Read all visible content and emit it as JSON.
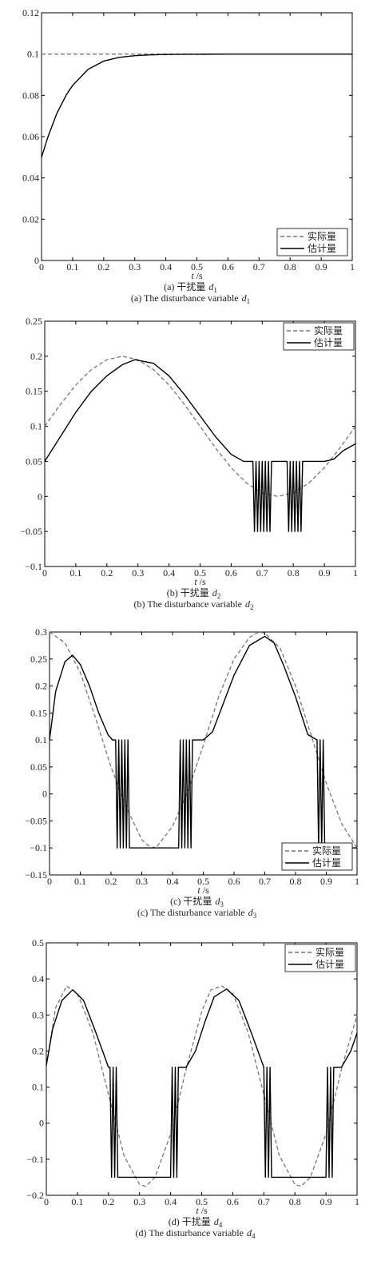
{
  "chart_data": [
    {
      "type": "line",
      "caption_cn": "(a) 干扰量",
      "caption_en": "(a) The disturbance variable",
      "var_letter": "d",
      "var_sub": "1",
      "xlabel_var": "t",
      "xlabel_unit": "/s",
      "xlim": [
        0,
        1
      ],
      "ylim": [
        0,
        0.12
      ],
      "x_ticks": [
        "0",
        "0.1",
        "0.2",
        "0.3",
        "0.4",
        "0.5",
        "0.6",
        "0.7",
        "0.8",
        "0.9",
        "1"
      ],
      "y_ticks": [
        "0",
        "0.02",
        "0.04",
        "0.06",
        "0.08",
        "0.1",
        "0.12"
      ],
      "legend_position": "bottom-right",
      "series": [
        {
          "name": "实际量",
          "style": "dashed",
          "color": "#777777",
          "x": [
            0,
            1
          ],
          "y": [
            0.1,
            0.1
          ]
        },
        {
          "name": "估计量",
          "style": "solid",
          "color": "#000000",
          "x": [
            0,
            0.02,
            0.05,
            0.08,
            0.1,
            0.15,
            0.2,
            0.25,
            0.3,
            0.35,
            0.4,
            0.45,
            0.5,
            0.6,
            0.7,
            0.8,
            0.9,
            1.0
          ],
          "y": [
            0.05,
            0.0596,
            0.0715,
            0.0803,
            0.0848,
            0.0926,
            0.0966,
            0.0984,
            0.0992,
            0.0996,
            0.0998,
            0.0999,
            0.0999,
            0.1,
            0.1,
            0.1,
            0.1,
            0.1
          ]
        }
      ]
    },
    {
      "type": "line",
      "caption_cn": "(b) 干扰量",
      "caption_en": "(b) The disturbance variable",
      "var_letter": "d",
      "var_sub": "2",
      "xlabel_var": "t",
      "xlabel_unit": "/s",
      "xlim": [
        0,
        1
      ],
      "ylim": [
        -0.1,
        0.25
      ],
      "x_ticks": [
        "0",
        "0.1",
        "0.2",
        "0.3",
        "0.4",
        "0.5",
        "0.6",
        "0.7",
        "0.8",
        "0.9",
        "1"
      ],
      "y_ticks": [
        "−0.1",
        "−0.05",
        "0",
        "0.05",
        "0.1",
        "0.15",
        "0.2",
        "0.25"
      ],
      "legend_position": "top-right",
      "series": [
        {
          "name": "实际量",
          "style": "dashed",
          "color": "#777777",
          "x": [
            0,
            0.05,
            0.1,
            0.15,
            0.2,
            0.25,
            0.3,
            0.35,
            0.4,
            0.45,
            0.5,
            0.55,
            0.6,
            0.65,
            0.7,
            0.75,
            0.8,
            0.85,
            0.9,
            0.95,
            1.0
          ],
          "y": [
            0.1,
            0.131,
            0.159,
            0.181,
            0.195,
            0.2,
            0.195,
            0.181,
            0.159,
            0.131,
            0.1,
            0.069,
            0.041,
            0.019,
            0.005,
            0.0,
            0.005,
            0.019,
            0.041,
            0.069,
            0.1
          ]
        },
        {
          "name": "估计量",
          "style": "solid",
          "color": "#000000",
          "x": [
            0,
            0.05,
            0.1,
            0.15,
            0.2,
            0.25,
            0.29,
            0.35,
            0.4,
            0.45,
            0.5,
            0.55,
            0.6,
            0.64,
            0.66,
            0.67,
            0.675,
            0.68,
            0.685,
            0.69,
            0.695,
            0.7,
            0.705,
            0.71,
            0.715,
            0.72,
            0.725,
            0.73,
            0.735,
            0.76,
            0.78,
            0.785,
            0.79,
            0.795,
            0.8,
            0.805,
            0.81,
            0.815,
            0.82,
            0.825,
            0.83,
            0.835,
            0.86,
            0.9,
            0.93,
            0.96,
            1.0
          ],
          "y": [
            0.05,
            0.085,
            0.12,
            0.15,
            0.172,
            0.188,
            0.195,
            0.19,
            0.172,
            0.145,
            0.115,
            0.085,
            0.06,
            0.05,
            0.05,
            0.05,
            -0.05,
            0.05,
            -0.05,
            0.05,
            -0.05,
            0.05,
            -0.05,
            0.05,
            -0.05,
            0.05,
            -0.05,
            0.05,
            0.05,
            0.05,
            0.05,
            -0.05,
            0.05,
            -0.05,
            0.05,
            -0.05,
            0.05,
            -0.05,
            0.05,
            -0.05,
            0.05,
            0.05,
            0.05,
            0.05,
            0.053,
            0.065,
            0.075
          ]
        }
      ]
    },
    {
      "type": "line",
      "caption_cn": "(c) 干扰量",
      "caption_en": "(c) The disturbance variable",
      "var_letter": "d",
      "var_sub": "3",
      "xlabel_var": "t",
      "xlabel_unit": "/s",
      "xlim": [
        0,
        1
      ],
      "ylim": [
        -0.15,
        0.3
      ],
      "x_ticks": [
        "0",
        "0.1",
        "0.2",
        "0.3",
        "0.4",
        "0.5",
        "0.6",
        "0.7",
        "0.8",
        "0.9",
        "1"
      ],
      "y_ticks": [
        "−0.15",
        "−0.1",
        "−0.05",
        "0",
        "0.05",
        "0.1",
        "0.15",
        "0.2",
        "0.25",
        "0.3"
      ],
      "legend_position": "bottom-right",
      "series": [
        {
          "name": "实际量",
          "style": "dashed",
          "color": "#777777",
          "x": [
            0,
            0.05,
            0.1,
            0.15,
            0.2,
            0.25,
            0.3,
            0.33,
            0.35,
            0.4,
            0.45,
            0.5,
            0.55,
            0.6,
            0.65,
            0.68,
            0.7,
            0.75,
            0.8,
            0.85,
            0.9,
            0.95,
            1.0
          ],
          "y": [
            0.3,
            0.28,
            0.225,
            0.14,
            0.05,
            -0.025,
            -0.085,
            -0.1,
            -0.097,
            -0.06,
            0.005,
            0.09,
            0.18,
            0.25,
            0.29,
            0.3,
            0.298,
            0.27,
            0.2,
            0.11,
            0.02,
            -0.055,
            -0.1
          ]
        },
        {
          "name": "估计量",
          "style": "solid",
          "color": "#000000",
          "x": [
            0,
            0.02,
            0.05,
            0.075,
            0.1,
            0.13,
            0.16,
            0.19,
            0.205,
            0.215,
            0.22,
            0.225,
            0.23,
            0.235,
            0.24,
            0.245,
            0.25,
            0.255,
            0.26,
            0.3,
            0.35,
            0.4,
            0.42,
            0.425,
            0.43,
            0.435,
            0.44,
            0.445,
            0.45,
            0.455,
            0.46,
            0.465,
            0.48,
            0.5,
            0.53,
            0.56,
            0.6,
            0.65,
            0.7,
            0.73,
            0.76,
            0.8,
            0.84,
            0.87,
            0.875,
            0.88,
            0.885,
            0.89,
            0.895,
            0.9,
            0.95,
            1.0
          ],
          "y": [
            0.1,
            0.19,
            0.245,
            0.257,
            0.24,
            0.2,
            0.15,
            0.11,
            0.1,
            0.1,
            -0.1,
            0.1,
            -0.1,
            0.1,
            -0.1,
            0.1,
            -0.1,
            0.1,
            -0.1,
            -0.1,
            -0.1,
            -0.1,
            -0.1,
            0.1,
            -0.1,
            0.1,
            -0.1,
            0.1,
            -0.1,
            0.1,
            -0.1,
            0.1,
            0.1,
            0.1,
            0.115,
            0.16,
            0.22,
            0.275,
            0.292,
            0.28,
            0.24,
            0.18,
            0.11,
            0.1,
            -0.1,
            0.1,
            -0.1,
            0.1,
            -0.1,
            -0.1,
            -0.1,
            -0.1
          ]
        }
      ]
    },
    {
      "type": "line",
      "caption_cn": "(d) 干扰量",
      "caption_en": "(d) The disturbance variable",
      "var_letter": "d",
      "var_sub": "4",
      "xlabel_var": "t",
      "xlabel_unit": "/s",
      "xlim": [
        0,
        1
      ],
      "ylim": [
        -0.2,
        0.5
      ],
      "x_ticks": [
        "0",
        "0.1",
        "0.2",
        "0.3",
        "0.4",
        "0.5",
        "0.6",
        "0.7",
        "0.8",
        "0.9",
        "1"
      ],
      "y_ticks": [
        "−0.2",
        "−0.1",
        "0",
        "0.1",
        "0.2",
        "0.3",
        "0.4",
        "0.5"
      ],
      "legend_position": "top-right",
      "series": [
        {
          "name": "实际量",
          "style": "dashed",
          "color": "#777777",
          "x": [
            0,
            0.03,
            0.065,
            0.1,
            0.15,
            0.2,
            0.25,
            0.3,
            0.32,
            0.35,
            0.4,
            0.45,
            0.5,
            0.53,
            0.565,
            0.6,
            0.65,
            0.7,
            0.75,
            0.8,
            0.82,
            0.85,
            0.9,
            0.95,
            1.0
          ],
          "y": [
            0.16,
            0.32,
            0.38,
            0.36,
            0.25,
            0.08,
            -0.09,
            -0.17,
            -0.175,
            -0.15,
            -0.03,
            0.15,
            0.31,
            0.37,
            0.38,
            0.36,
            0.25,
            0.08,
            -0.09,
            -0.17,
            -0.175,
            -0.15,
            -0.03,
            0.15,
            0.3
          ]
        },
        {
          "name": "估计量",
          "style": "solid",
          "color": "#000000",
          "x": [
            0,
            0.02,
            0.05,
            0.085,
            0.12,
            0.16,
            0.2,
            0.205,
            0.21,
            0.215,
            0.22,
            0.225,
            0.23,
            0.3,
            0.33,
            0.4,
            0.405,
            0.41,
            0.415,
            0.42,
            0.425,
            0.45,
            0.48,
            0.51,
            0.54,
            0.58,
            0.62,
            0.66,
            0.7,
            0.705,
            0.71,
            0.715,
            0.72,
            0.725,
            0.73,
            0.8,
            0.83,
            0.9,
            0.905,
            0.91,
            0.915,
            0.92,
            0.925,
            0.95,
            0.98,
            1.0
          ],
          "y": [
            0.16,
            0.26,
            0.34,
            0.37,
            0.34,
            0.25,
            0.155,
            0.155,
            -0.15,
            0.155,
            -0.15,
            0.155,
            -0.15,
            -0.15,
            -0.15,
            -0.15,
            0.155,
            -0.15,
            0.155,
            -0.15,
            0.155,
            0.155,
            0.2,
            0.28,
            0.35,
            0.372,
            0.34,
            0.25,
            0.155,
            -0.15,
            0.155,
            -0.15,
            0.155,
            -0.15,
            -0.15,
            -0.15,
            -0.15,
            -0.15,
            0.155,
            -0.15,
            0.155,
            -0.15,
            0.155,
            0.155,
            0.2,
            0.25
          ]
        }
      ]
    }
  ]
}
